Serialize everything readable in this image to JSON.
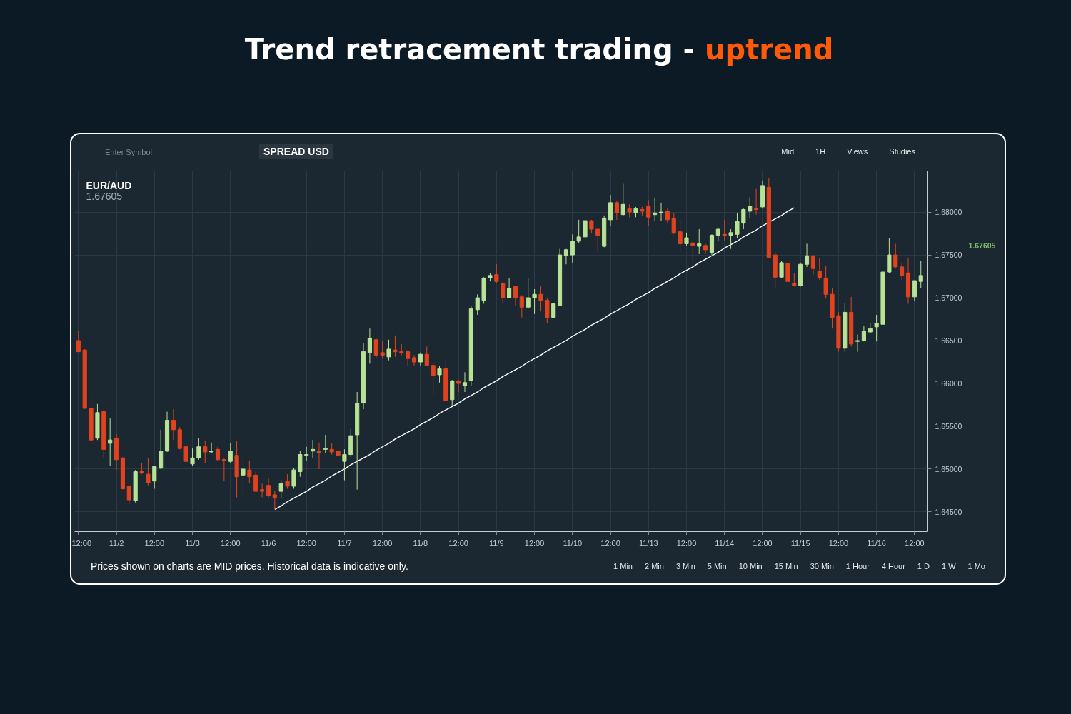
{
  "chart_data": {
    "type": "candlestick",
    "title": "Trend retracement trading - uptrend",
    "subtitle": "EUR/AUD",
    "annotations": [
      "1.67605",
      "Enter Symbol",
      "SPREAD USD",
      "Mid",
      "1H",
      "Views",
      "Studies",
      "Prices shown on charts are MID prices. Historical data is indicative only.",
      "1 Min",
      "2 Min",
      "3 Min",
      "5 Min",
      "10 Min",
      "15 Min",
      "30 Min",
      "1 Hour",
      "4 Hour",
      "1 D",
      "1 W",
      "1 Mo"
    ],
    "ylim": [
      1.6427,
      1.6848
    ],
    "yticks": [
      {
        "value": 1.645,
        "label": "1.64500"
      },
      {
        "value": 1.65,
        "label": "1.65000"
      },
      {
        "value": 1.655,
        "label": "1.65500"
      },
      {
        "value": 1.66,
        "label": "1.66000"
      },
      {
        "value": 1.665,
        "label": "1.66500"
      },
      {
        "value": 1.67,
        "label": "1.67000"
      },
      {
        "value": 1.675,
        "label": "1.67500"
      },
      {
        "value": 1.68,
        "label": "1.68000"
      }
    ],
    "grid": true,
    "ref_lines": [
      {
        "axis": "y",
        "value": 1.67605,
        "label": "1.67605",
        "color": "#7dbf63",
        "line_style": "dotted"
      }
    ],
    "categories": [
      "12:00",
      null,
      null,
      null,
      null,
      null,
      "11/2",
      null,
      null,
      null,
      null,
      null,
      "12:00",
      null,
      null,
      null,
      null,
      null,
      "11/3",
      null,
      null,
      null,
      null,
      null,
      "12:00",
      null,
      null,
      null,
      null,
      null,
      "11/6",
      null,
      null,
      null,
      null,
      null,
      "12:00",
      null,
      null,
      null,
      null,
      null,
      "11/7",
      null,
      null,
      null,
      null,
      null,
      "12:00",
      null,
      null,
      null,
      null,
      null,
      "11/8",
      null,
      null,
      null,
      null,
      null,
      "12:00",
      null,
      null,
      null,
      null,
      null,
      "11/9",
      null,
      null,
      null,
      null,
      null,
      "12:00",
      null,
      null,
      null,
      null,
      null,
      "11/10",
      null,
      null,
      null,
      null,
      null,
      "12:00",
      null,
      null,
      null,
      null,
      null,
      "11/13",
      null,
      null,
      null,
      null,
      null,
      "12:00",
      null,
      null,
      null,
      null,
      null,
      "11/14",
      null,
      null,
      null,
      null,
      null,
      "12:00",
      null,
      null,
      null,
      null,
      null,
      "11/15",
      null,
      null,
      null,
      null,
      null,
      "12:00",
      null,
      null,
      null,
      null,
      null,
      "11/16",
      null,
      null,
      null,
      null,
      null,
      "12:00",
      null
    ],
    "ohlc": [
      [
        1.665,
        1.6661,
        1.6637,
        1.6637
      ],
      [
        1.6639,
        1.664,
        1.657,
        1.6571
      ],
      [
        1.6571,
        1.6586,
        1.6529,
        1.6534
      ],
      [
        1.6536,
        1.6576,
        1.6534,
        1.6566
      ],
      [
        1.6567,
        1.6569,
        1.6513,
        1.6523
      ],
      [
        1.653,
        1.6559,
        1.6504,
        1.6534
      ],
      [
        1.6536,
        1.6541,
        1.6499,
        1.6511
      ],
      [
        1.6513,
        1.6514,
        1.6476,
        1.6477
      ],
      [
        1.648,
        1.6481,
        1.6459,
        1.6464
      ],
      [
        1.6463,
        1.6499,
        1.6461,
        1.6497
      ],
      [
        1.6497,
        1.6507,
        1.6494,
        1.6496
      ],
      [
        1.6494,
        1.6513,
        1.6481,
        1.6484
      ],
      [
        1.6486,
        1.6504,
        1.6477,
        1.6503
      ],
      [
        1.6501,
        1.6546,
        1.65,
        1.6521
      ],
      [
        1.6521,
        1.6567,
        1.652,
        1.6557
      ],
      [
        1.6557,
        1.657,
        1.6534,
        1.6546
      ],
      [
        1.6546,
        1.6549,
        1.6523,
        1.6524
      ],
      [
        1.6526,
        1.6529,
        1.6507,
        1.6509
      ],
      [
        1.6506,
        1.6524,
        1.6504,
        1.6513
      ],
      [
        1.6513,
        1.6536,
        1.6511,
        1.6526
      ],
      [
        1.6526,
        1.6533,
        1.6507,
        1.652
      ],
      [
        1.652,
        1.6531,
        1.6519,
        1.6521
      ],
      [
        1.6523,
        1.6526,
        1.6509,
        1.6511
      ],
      [
        1.6511,
        1.6513,
        1.6486,
        1.651
      ],
      [
        1.6509,
        1.653,
        1.6507,
        1.6521
      ],
      [
        1.6516,
        1.6533,
        1.6467,
        1.6491
      ],
      [
        1.6493,
        1.6513,
        1.6467,
        1.65
      ],
      [
        1.6499,
        1.651,
        1.6484,
        1.6491
      ],
      [
        1.6493,
        1.6497,
        1.6474,
        1.6474
      ],
      [
        1.6476,
        1.6483,
        1.6467,
        1.6474
      ],
      [
        1.6481,
        1.6489,
        1.6466,
        1.6469
      ],
      [
        1.647,
        1.6474,
        1.6453,
        1.6467
      ],
      [
        1.6474,
        1.6487,
        1.6466,
        1.6483
      ],
      [
        1.6486,
        1.6494,
        1.6477,
        1.648
      ],
      [
        1.648,
        1.6501,
        1.6477,
        1.6499
      ],
      [
        1.6497,
        1.6521,
        1.6491,
        1.6517
      ],
      [
        1.6516,
        1.6526,
        1.651,
        1.6517
      ],
      [
        1.6521,
        1.6534,
        1.6513,
        1.6523
      ],
      [
        1.6521,
        1.6531,
        1.65,
        1.6519
      ],
      [
        1.6523,
        1.654,
        1.6519,
        1.6524
      ],
      [
        1.6523,
        1.653,
        1.6517,
        1.652
      ],
      [
        1.6521,
        1.6527,
        1.6514,
        1.6516
      ],
      [
        1.6509,
        1.6523,
        1.6487,
        1.6517
      ],
      [
        1.6517,
        1.6547,
        1.6514,
        1.6539
      ],
      [
        1.654,
        1.659,
        1.6476,
        1.6577
      ],
      [
        1.6577,
        1.6647,
        1.657,
        1.6637
      ],
      [
        1.6636,
        1.6664,
        1.6623,
        1.6653
      ],
      [
        1.6651,
        1.6653,
        1.6629,
        1.6633
      ],
      [
        1.6636,
        1.6649,
        1.6629,
        1.6633
      ],
      [
        1.6631,
        1.6651,
        1.6627,
        1.664
      ],
      [
        1.6639,
        1.6656,
        1.6631,
        1.6637
      ],
      [
        1.6637,
        1.6646,
        1.6633,
        1.6636
      ],
      [
        1.6637,
        1.6639,
        1.662,
        1.6629
      ],
      [
        1.663,
        1.6633,
        1.6621,
        1.6625
      ],
      [
        1.6625,
        1.6636,
        1.6621,
        1.6634
      ],
      [
        1.6634,
        1.6643,
        1.6621,
        1.6621
      ],
      [
        1.6621,
        1.6623,
        1.6587,
        1.6609
      ],
      [
        1.661,
        1.662,
        1.6601,
        1.6617
      ],
      [
        1.6617,
        1.6627,
        1.6579,
        1.658
      ],
      [
        1.6581,
        1.6604,
        1.6574,
        1.6603
      ],
      [
        1.6603,
        1.6604,
        1.659,
        1.66
      ],
      [
        1.6597,
        1.6613,
        1.659,
        1.6601
      ],
      [
        1.6603,
        1.669,
        1.6597,
        1.6687
      ],
      [
        1.6686,
        1.6704,
        1.668,
        1.67
      ],
      [
        1.6697,
        1.6724,
        1.6693,
        1.6723
      ],
      [
        1.6723,
        1.6729,
        1.6719,
        1.6726
      ],
      [
        1.6727,
        1.6739,
        1.6717,
        1.6719
      ],
      [
        1.6717,
        1.6719,
        1.6694,
        1.67
      ],
      [
        1.67,
        1.6723,
        1.67,
        1.6711
      ],
      [
        1.6713,
        1.6714,
        1.6691,
        1.67
      ],
      [
        1.6701,
        1.6703,
        1.6677,
        1.6689
      ],
      [
        1.6689,
        1.6723,
        1.6687,
        1.67
      ],
      [
        1.67,
        1.671,
        1.6681,
        1.6704
      ],
      [
        1.6704,
        1.6713,
        1.6684,
        1.6697
      ],
      [
        1.6697,
        1.67,
        1.667,
        1.6677
      ],
      [
        1.6677,
        1.6694,
        1.6676,
        1.6693
      ],
      [
        1.6691,
        1.6757,
        1.669,
        1.675
      ],
      [
        1.6749,
        1.6757,
        1.6739,
        1.6756
      ],
      [
        1.675,
        1.6774,
        1.6741,
        1.6766
      ],
      [
        1.6766,
        1.6791,
        1.6764,
        1.6771
      ],
      [
        1.6771,
        1.6791,
        1.677,
        1.679
      ],
      [
        1.679,
        1.6791,
        1.6775,
        1.678
      ],
      [
        1.678,
        1.6781,
        1.6754,
        1.6773
      ],
      [
        1.676,
        1.6796,
        1.6759,
        1.6793
      ],
      [
        1.6791,
        1.682,
        1.6784,
        1.6811
      ],
      [
        1.6811,
        1.6813,
        1.6791,
        1.6799
      ],
      [
        1.6797,
        1.6833,
        1.6796,
        1.6809
      ],
      [
        1.6804,
        1.6809,
        1.6794,
        1.68
      ],
      [
        1.6799,
        1.6806,
        1.6794,
        1.6804
      ],
      [
        1.6803,
        1.6806,
        1.6796,
        1.6801
      ],
      [
        1.6807,
        1.6814,
        1.6784,
        1.6794
      ],
      [
        1.6797,
        1.6817,
        1.679,
        1.6799
      ],
      [
        1.6799,
        1.6811,
        1.679,
        1.68
      ],
      [
        1.6801,
        1.6804,
        1.6787,
        1.6791
      ],
      [
        1.6793,
        1.6799,
        1.6774,
        1.6776
      ],
      [
        1.6777,
        1.6791,
        1.6753,
        1.6763
      ],
      [
        1.6763,
        1.6776,
        1.6761,
        1.677
      ],
      [
        1.6764,
        1.6766,
        1.674,
        1.6761
      ],
      [
        1.676,
        1.678,
        1.6751,
        1.6763
      ],
      [
        1.6761,
        1.6763,
        1.6751,
        1.6756
      ],
      [
        1.6753,
        1.6774,
        1.675,
        1.6773
      ],
      [
        1.6773,
        1.6781,
        1.6766,
        1.678
      ],
      [
        1.6774,
        1.6791,
        1.6766,
        1.6773
      ],
      [
        1.6773,
        1.678,
        1.6757,
        1.6776
      ],
      [
        1.6774,
        1.6799,
        1.677,
        1.6789
      ],
      [
        1.6787,
        1.6804,
        1.678,
        1.6803
      ],
      [
        1.6801,
        1.6817,
        1.6793,
        1.6807
      ],
      [
        1.6804,
        1.6827,
        1.6797,
        1.6803
      ],
      [
        1.6806,
        1.6837,
        1.6804,
        1.6831
      ],
      [
        1.6829,
        1.684,
        1.6747,
        1.6747
      ],
      [
        1.675,
        1.6754,
        1.6711,
        1.6724
      ],
      [
        1.6724,
        1.6743,
        1.6723,
        1.6741
      ],
      [
        1.674,
        1.6741,
        1.6717,
        1.6719
      ],
      [
        1.6717,
        1.6729,
        1.6713,
        1.6714
      ],
      [
        1.6714,
        1.6741,
        1.6713,
        1.6739
      ],
      [
        1.6739,
        1.6763,
        1.6736,
        1.6749
      ],
      [
        1.6749,
        1.675,
        1.6727,
        1.6734
      ],
      [
        1.6731,
        1.6746,
        1.6721,
        1.6723
      ],
      [
        1.6723,
        1.6737,
        1.6699,
        1.6704
      ],
      [
        1.6704,
        1.6711,
        1.6664,
        1.6677
      ],
      [
        1.6679,
        1.6683,
        1.6637,
        1.6641
      ],
      [
        1.6641,
        1.6694,
        1.6637,
        1.6683
      ],
      [
        1.6683,
        1.6701,
        1.6643,
        1.6646
      ],
      [
        1.6649,
        1.6657,
        1.6637,
        1.665
      ],
      [
        1.665,
        1.6667,
        1.6649,
        1.6661
      ],
      [
        1.666,
        1.667,
        1.6659,
        1.6664
      ],
      [
        1.6666,
        1.668,
        1.6649,
        1.667
      ],
      [
        1.6669,
        1.6743,
        1.6657,
        1.673
      ],
      [
        1.673,
        1.677,
        1.6729,
        1.675
      ],
      [
        1.675,
        1.6763,
        1.6734,
        1.6736
      ],
      [
        1.6736,
        1.6741,
        1.6721,
        1.6726
      ],
      [
        1.6729,
        1.6746,
        1.6693,
        1.6701
      ],
      [
        1.6701,
        1.672,
        1.6696,
        1.672
      ],
      [
        1.6719,
        1.6743,
        1.6711,
        1.6726
      ]
    ],
    "colors": [
      "#e2431e",
      "#e2431e",
      "#e2431e",
      "#b8e295",
      "#e2431e",
      "#b8e295",
      "#e2431e",
      "#e2431e",
      "#e2431e",
      "#b8e295",
      "#e2431e",
      "#e2431e",
      "#b8e295",
      "#b8e295",
      "#b8e295",
      "#e2431e",
      "#e2431e",
      "#e2431e",
      "#b8e295",
      "#b8e295",
      "#e2431e",
      "#b8e295",
      "#e2431e",
      "#e2431e",
      "#b8e295",
      "#e2431e",
      "#b8e295",
      "#e2431e",
      "#e2431e",
      "#e2431e",
      "#e2431e",
      "#e2431e",
      "#b8e295",
      "#e2431e",
      "#b8e295",
      "#b8e295",
      "#b8e295",
      "#b8e295",
      "#e2431e",
      "#b8e295",
      "#e2431e",
      "#e2431e",
      "#b8e295",
      "#b8e295",
      "#b8e295",
      "#b8e295",
      "#b8e295",
      "#e2431e",
      "#e2431e",
      "#b8e295",
      "#e2431e",
      "#e2431e",
      "#e2431e",
      "#e2431e",
      "#b8e295",
      "#e2431e",
      "#e2431e",
      "#b8e295",
      "#e2431e",
      "#b8e295",
      "#e2431e",
      "#b8e295",
      "#b8e295",
      "#b8e295",
      "#b8e295",
      "#b8e295",
      "#e2431e",
      "#e2431e",
      "#b8e295",
      "#e2431e",
      "#e2431e",
      "#b8e295",
      "#b8e295",
      "#e2431e",
      "#e2431e",
      "#b8e295",
      "#b8e295",
      "#b8e295",
      "#b8e295",
      "#b8e295",
      "#b8e295",
      "#e2431e",
      "#e2431e",
      "#b8e295",
      "#b8e295",
      "#e2431e",
      "#b8e295",
      "#e2431e",
      "#b8e295",
      "#e2431e",
      "#e2431e",
      "#b8e295",
      "#b8e295",
      "#e2431e",
      "#e2431e",
      "#e2431e",
      "#b8e295",
      "#e2431e",
      "#b8e295",
      "#e2431e",
      "#b8e295",
      "#b8e295",
      "#e2431e",
      "#b8e295",
      "#b8e295",
      "#b8e295",
      "#b8e295",
      "#e2431e",
      "#b8e295",
      "#e2431e",
      "#e2431e",
      "#b8e295",
      "#e2431e",
      "#e2431e",
      "#b8e295",
      "#b8e295",
      "#e2431e",
      "#e2431e",
      "#e2431e",
      "#e2431e",
      "#e2431e",
      "#b8e295",
      "#e2431e",
      "#b8e295",
      "#b8e295",
      "#b8e295",
      "#b8e295",
      "#b8e295",
      "#b8e295",
      "#e2431e",
      "#e2431e",
      "#e2431e",
      "#b8e295",
      "#b8e295"
    ],
    "series": [
      {
        "type": "line",
        "color": "#ffffff",
        "values": [
          null,
          null,
          null,
          null,
          null,
          null,
          null,
          null,
          null,
          null,
          null,
          null,
          null,
          null,
          null,
          null,
          null,
          null,
          null,
          null,
          null,
          null,
          null,
          null,
          null,
          null,
          null,
          null,
          null,
          null,
          null,
          1.6453,
          1.6457,
          1.6462,
          1.6466,
          1.647,
          1.6474,
          1.6479,
          1.6483,
          1.6487,
          1.6492,
          1.6496,
          1.65,
          1.6505,
          1.6509,
          1.6513,
          1.6517,
          1.6522,
          1.6526,
          1.653,
          1.6535,
          1.6539,
          1.6543,
          1.6547,
          1.6552,
          1.6556,
          1.656,
          1.6565,
          1.6569,
          1.6573,
          1.6577,
          1.6582,
          1.6586,
          1.659,
          1.6595,
          1.6599,
          1.6603,
          1.6608,
          1.6612,
          1.6616,
          1.662,
          1.6625,
          1.6629,
          1.6633,
          1.6638,
          1.6642,
          1.6646,
          1.665,
          1.6655,
          1.6659,
          1.6663,
          1.6668,
          1.6672,
          1.6676,
          1.6681,
          1.6685,
          1.6689,
          1.6693,
          1.6698,
          1.6702,
          1.6706,
          1.6711,
          1.6715,
          1.6719,
          1.6723,
          1.6728,
          1.6732,
          1.6736,
          1.6741,
          1.6745,
          1.6749,
          1.6753,
          1.6758,
          1.6762,
          1.6766,
          1.6771,
          1.6775,
          1.6779,
          1.6784,
          1.6788,
          1.6792,
          1.6796,
          1.6801,
          1.6805,
          null,
          null,
          null,
          null,
          null,
          null,
          null,
          null,
          null,
          null,
          null,
          null,
          null,
          null,
          null,
          null,
          null,
          null,
          null,
          null
        ]
      }
    ]
  }
}
